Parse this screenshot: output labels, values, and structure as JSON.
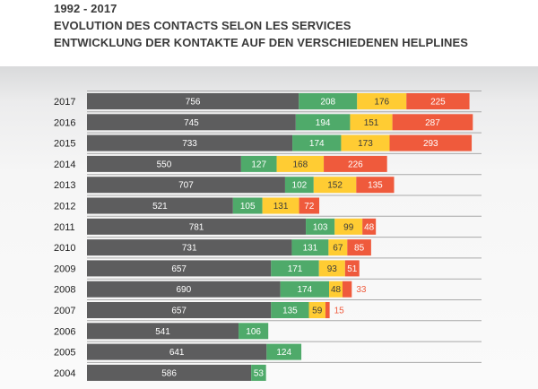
{
  "header": {
    "period": "1992 - 2017",
    "title_fr": "EVOLUTION DES CONTACTS SELON LES SERVICES",
    "title_de": "ENTWICKLUNG DER KONTAKTE AUF DEN VERSCHIEDENEN HELPLINES"
  },
  "colors": {
    "series": [
      "#5d5d5e",
      "#4faa6a",
      "#ffcc33",
      "#ef5a3c"
    ],
    "outside_label": "#ef5a3c"
  },
  "chart_data": {
    "type": "bar",
    "orientation": "horizontal",
    "stacked": true,
    "categories": [
      "2017",
      "2016",
      "2015",
      "2014",
      "2013",
      "2012",
      "2011",
      "2010",
      "2009",
      "2008",
      "2007",
      "2006",
      "2005",
      "2004"
    ],
    "series": [
      {
        "values": [
          756,
          745,
          733,
          550,
          707,
          521,
          781,
          731,
          657,
          690,
          657,
          541,
          641,
          586
        ]
      },
      {
        "values": [
          208,
          194,
          174,
          127,
          102,
          105,
          103,
          131,
          171,
          174,
          135,
          106,
          124,
          53
        ]
      },
      {
        "values": [
          176,
          151,
          173,
          168,
          152,
          131,
          99,
          67,
          93,
          48,
          59,
          null,
          null,
          null
        ]
      },
      {
        "values": [
          225,
          287,
          293,
          226,
          135,
          72,
          48,
          85,
          51,
          33,
          15,
          null,
          null,
          null
        ]
      }
    ],
    "label_outside_last": [
      "2008",
      "2007"
    ],
    "grid": true,
    "legend": "none"
  }
}
